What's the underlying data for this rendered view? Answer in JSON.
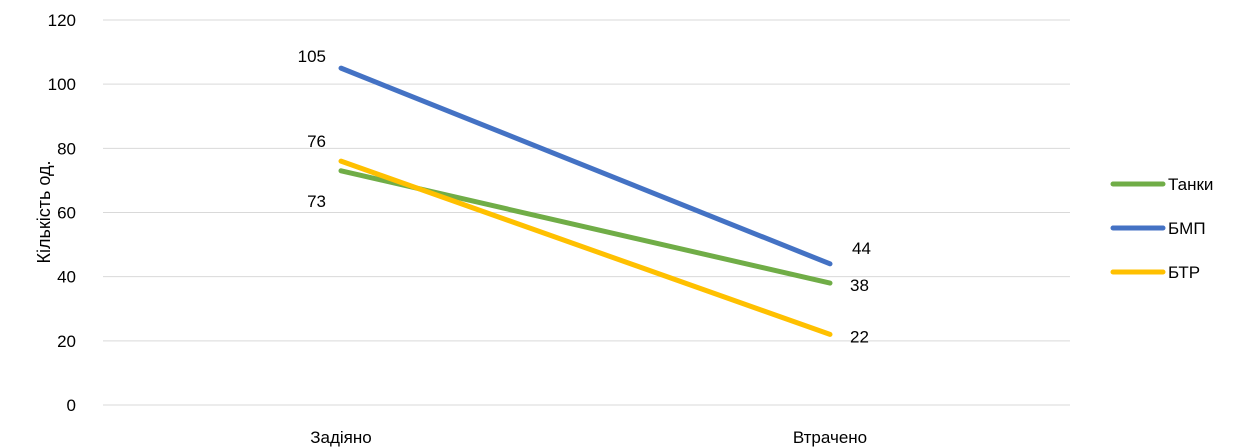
{
  "chart_data": {
    "type": "line",
    "categories": [
      "Задіяно",
      "Втрачено"
    ],
    "series": [
      {
        "name": "Танки",
        "values": [
          73,
          38
        ],
        "color": "#70AD47"
      },
      {
        "name": "БМП",
        "values": [
          105,
          44
        ],
        "color": "#4472C4"
      },
      {
        "name": "БТР",
        "values": [
          76,
          22
        ],
        "color": "#FFC000"
      }
    ],
    "ylabel": "Кількість од.",
    "xlabel": "",
    "ylim": [
      0,
      120
    ],
    "yticks": [
      0,
      20,
      40,
      60,
      80,
      100,
      120
    ],
    "grid": true,
    "legend": "right",
    "data_labels": true
  }
}
